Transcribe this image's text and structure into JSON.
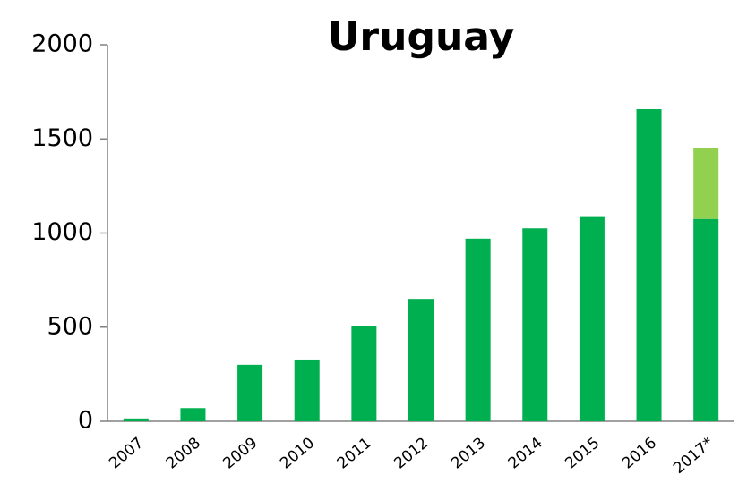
{
  "chart_data": {
    "type": "stacked_bar",
    "title": "Uruguay",
    "categories": [
      "2007",
      "2008",
      "2009",
      "2010",
      "2011",
      "2012",
      "2013",
      "2014",
      "2015",
      "2016",
      "2017*"
    ],
    "series": [
      {
        "color": "#00b050",
        "values": [
          15,
          70,
          300,
          328,
          505,
          650,
          970,
          1025,
          1085,
          1658,
          1075
        ]
      },
      {
        "color": "#92d050",
        "values": [
          null,
          null,
          null,
          null,
          null,
          null,
          null,
          null,
          null,
          null,
          375
        ]
      }
    ],
    "ylim": [
      0,
      2000
    ],
    "yticks": [
      0,
      500,
      1000,
      1500,
      2000
    ],
    "grid": false
  }
}
